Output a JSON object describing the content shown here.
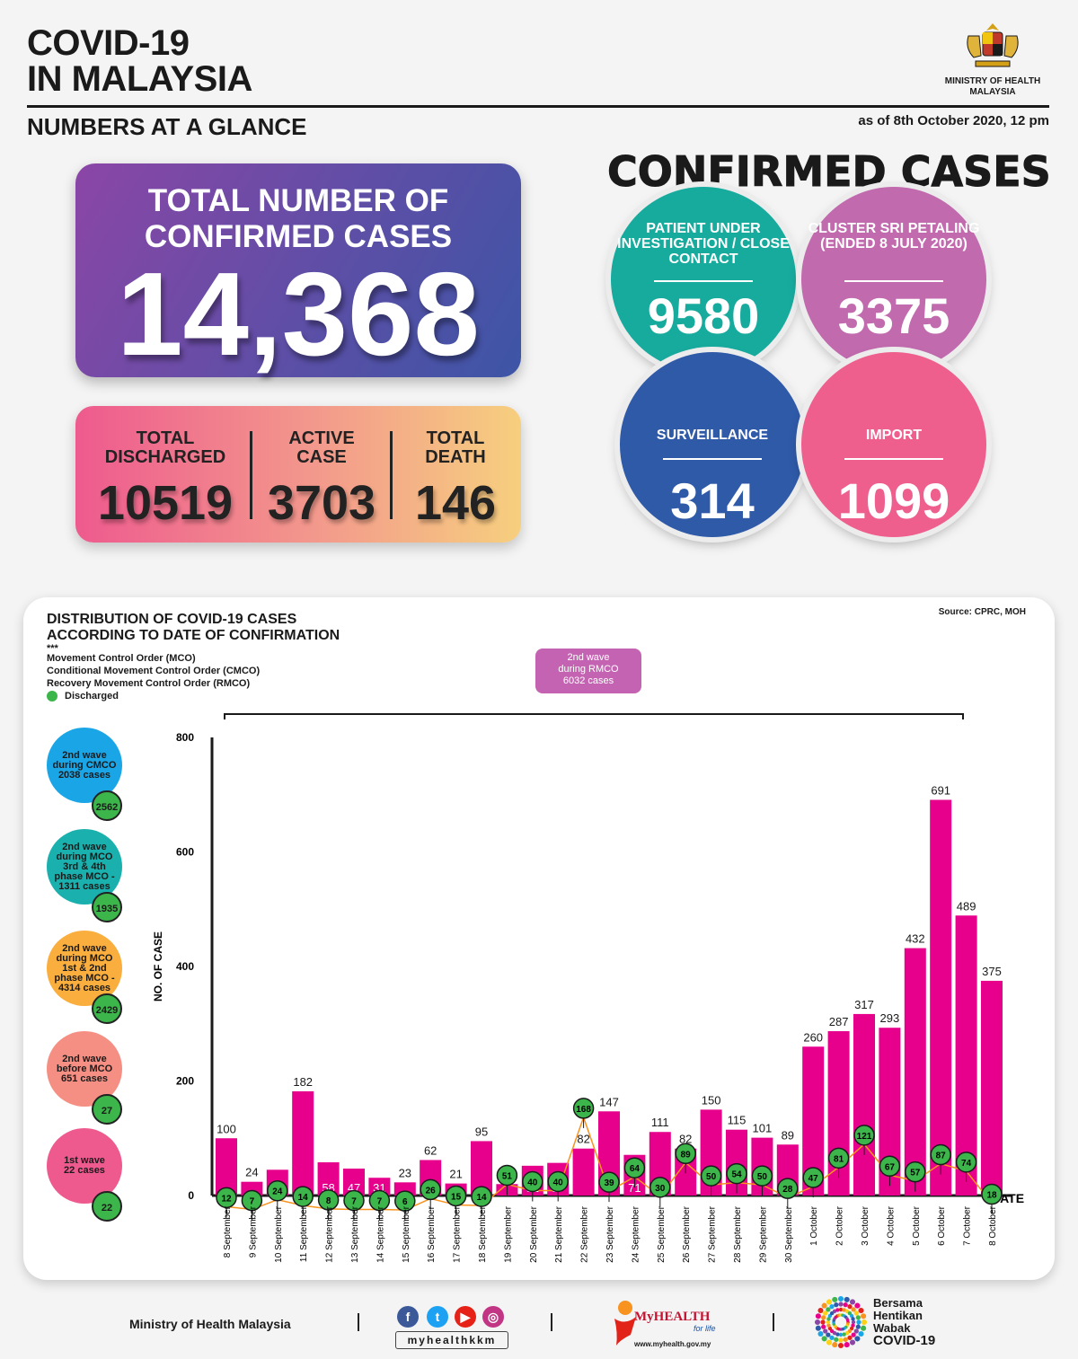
{
  "header": {
    "title_line1": "COVID-19",
    "title_line2": "IN MALAYSIA",
    "subtitle": "NUMBERS AT A GLANCE",
    "as_of": "as of 8th October 2020, 12 pm",
    "ministry_line1": "MINISTRY OF HEALTH",
    "ministry_line2": "MALAYSIA"
  },
  "totals": {
    "label_line1": "TOTAL NUMBER OF",
    "label_line2": "CONFIRMED CASES",
    "total": "14,368",
    "discharged_label1": "TOTAL",
    "discharged_label2": "DISCHARGED",
    "discharged": "10519",
    "active_label1": "ACTIVE",
    "active_label2": "CASE",
    "active": "3703",
    "death_label1": "TOTAL",
    "death_label2": "DEATH",
    "death": "146"
  },
  "confirmed": {
    "title": "CONFIRMED CASES",
    "puc_label": "PATIENT UNDER INVESTIGATION / CLOSE CONTACT",
    "puc_value": "9580",
    "cluster_label": "CLUSTER SRI PETALING (ENDED 8 JULY 2020)",
    "cluster_value": "3375",
    "surveillance_label": "SURVEILLANCE",
    "surveillance_value": "314",
    "import_label": "IMPORT",
    "import_value": "1099"
  },
  "distribution": {
    "title_line1": "DISTRIBUTION OF COVID-19 CASES",
    "title_line2": "ACCORDING TO DATE OF CONFIRMATION",
    "stars": "***",
    "legend_mco": "Movement Control Order (MCO)",
    "legend_cmco": "Conditional Movement Control Order (CMCO)",
    "legend_rmco": "Recovery Movement Control Order (RMCO)",
    "legend_discharged": "Discharged",
    "source": "Source: CPRC, MOH",
    "rmco_line1": "2nd wave",
    "rmco_line2": "during RMCO",
    "rmco_line3": "6032 cases",
    "waves": [
      {
        "lines": [
          "2nd wave",
          "during CMCO",
          "2038 cases"
        ],
        "discharged": "2562",
        "color": "#1aa6e6"
      },
      {
        "lines": [
          "2nd wave",
          "during MCO",
          "3rd & 4th",
          "phase MCO -",
          "1311 cases"
        ],
        "discharged": "1935",
        "color": "#1ab0ad"
      },
      {
        "lines": [
          "2nd wave",
          "during MCO",
          "1st & 2nd",
          "phase MCO -",
          "4314 cases"
        ],
        "discharged": "2429",
        "color": "#f9ae3d"
      },
      {
        "lines": [
          "2nd wave",
          "before MCO",
          "651 cases"
        ],
        "discharged": "27",
        "color": "#f58f83"
      },
      {
        "lines": [
          "1st wave",
          "22 cases"
        ],
        "discharged": "22",
        "color": "#ee5a8e"
      }
    ]
  },
  "chart_data": {
    "type": "bar",
    "ylabel": "NO. OF CASE",
    "xlabel": "DATE",
    "ylim": [
      0,
      800
    ],
    "yticks": [
      0,
      200,
      400,
      600,
      800
    ],
    "categories": [
      "8 September",
      "9 September",
      "10 September",
      "11 September",
      "12 September",
      "13 September",
      "14 September",
      "15 September",
      "16 September",
      "17 September",
      "18 September",
      "19 September",
      "20 September",
      "21 September",
      "22 September",
      "23 September",
      "24 September",
      "25 September",
      "26 September",
      "27 September",
      "28 September",
      "29 September",
      "30 September",
      "1 October",
      "2 October",
      "3 October",
      "4 October",
      "5 October",
      "6 October",
      "7 October",
      "8 October"
    ],
    "series": [
      {
        "values": [
          100,
          24,
          45,
          182,
          58,
          47,
          31,
          23,
          62,
          21,
          95,
          20,
          52,
          57,
          82,
          147,
          71,
          111,
          82,
          150,
          115,
          101,
          89,
          260,
          287,
          317,
          293,
          432,
          691,
          489,
          375
        ],
        "color": "#e6008c"
      },
      {
        "name": "Discharged",
        "values": [
          12,
          7,
          24,
          14,
          8,
          7,
          7,
          6,
          26,
          15,
          14,
          51,
          40,
          40,
          168,
          39,
          64,
          30,
          89,
          50,
          54,
          50,
          28,
          47,
          81,
          121,
          67,
          57,
          87,
          74,
          18
        ],
        "color": "#3cb54a"
      }
    ]
  },
  "footer": {
    "ministry": "Ministry of Health Malaysia",
    "handle": "myhealthkkm",
    "myhealth": "MyHEALTH",
    "forlife": "for life",
    "url": "www.myhealth.gov.my",
    "campaign_line1": "Bersama",
    "campaign_line2": "Hentikan",
    "campaign_line3": "Wabak",
    "campaign_line4": "COVID-19"
  }
}
